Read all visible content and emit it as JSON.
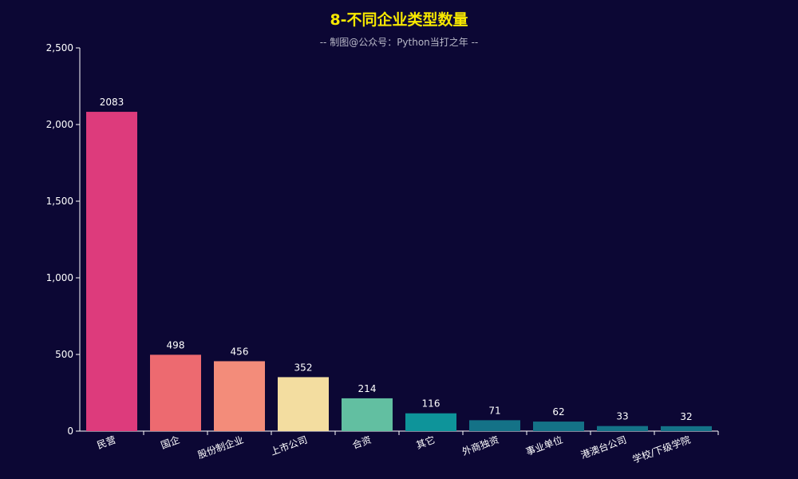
{
  "chart_data": {
    "type": "bar",
    "title": "8-不同企业类型数量",
    "subtitle": "-- 制图@公众号：Python当打之年 --",
    "xlabel": "",
    "ylabel": "",
    "ylim": [
      0,
      2500
    ],
    "y_ticks": [
      0,
      500,
      1000,
      1500,
      2000,
      2500
    ],
    "y_tick_labels": [
      "0",
      "500",
      "1,000",
      "1,500",
      "2,000",
      "2,500"
    ],
    "categories": [
      "民营",
      "国企",
      "股份制企业",
      "上市公司",
      "合资",
      "其它",
      "外商独资",
      "事业单位",
      "港澳台公司",
      "学校/下级学院"
    ],
    "values": [
      2083,
      498,
      456,
      352,
      214,
      116,
      71,
      62,
      33,
      32
    ],
    "colors": [
      "#dd3b7c",
      "#ed6a70",
      "#f38c7a",
      "#f3dda0",
      "#62bfa1",
      "#0e949a",
      "#147287",
      "#147287",
      "#147287",
      "#147287"
    ],
    "grid": false,
    "legend": "none"
  }
}
